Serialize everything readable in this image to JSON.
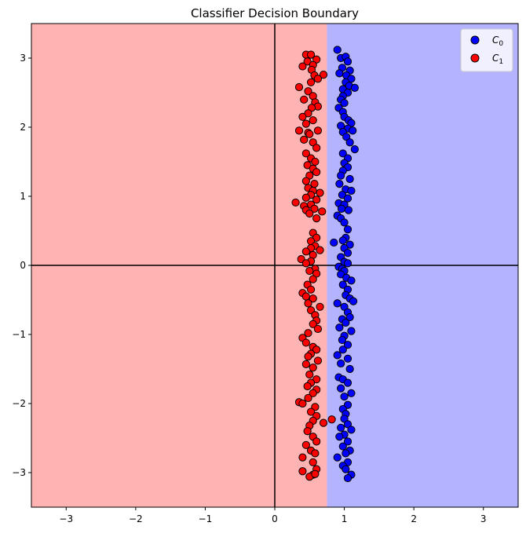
{
  "chart_data": {
    "type": "scatter",
    "title": "Classifier Decision Boundary",
    "xlabel": "",
    "ylabel": "",
    "xlim": [
      -3.5,
      3.5
    ],
    "ylim": [
      -3.5,
      3.5
    ],
    "xticks": [
      -3,
      -2,
      -1,
      0,
      1,
      2,
      3
    ],
    "yticks": [
      -3,
      -2,
      -1,
      0,
      1,
      2,
      3
    ],
    "grid": false,
    "reference_lines": [
      0,
      0
    ],
    "decision_boundary_x": 0.75,
    "regions": [
      {
        "side": "left",
        "label": "C1",
        "color": "#ffb3b3"
      },
      {
        "side": "right",
        "label": "C0",
        "color": "#b3b3ff"
      }
    ],
    "legend": {
      "placement": "top-right",
      "entries": [
        {
          "label": "C",
          "subscript": "0",
          "color": "#0000ff"
        },
        {
          "label": "C",
          "subscript": "1",
          "color": "#ff0000"
        }
      ]
    },
    "series": [
      {
        "name": "C0",
        "color": "#0000ff",
        "points": [
          [
            0.9,
            3.12
          ],
          [
            0.95,
            3.0
          ],
          [
            1.02,
            3.02
          ],
          [
            1.05,
            2.95
          ],
          [
            0.97,
            2.86
          ],
          [
            1.08,
            2.82
          ],
          [
            0.93,
            2.78
          ],
          [
            1.03,
            2.75
          ],
          [
            1.1,
            2.7
          ],
          [
            1.02,
            2.65
          ],
          [
            1.07,
            2.6
          ],
          [
            1.15,
            2.57
          ],
          [
            0.98,
            2.55
          ],
          [
            1.05,
            2.5
          ],
          [
            0.98,
            2.45
          ],
          [
            0.95,
            2.4
          ],
          [
            1.0,
            2.35
          ],
          [
            0.92,
            2.28
          ],
          [
            0.98,
            2.22
          ],
          [
            1.0,
            2.15
          ],
          [
            1.06,
            2.1
          ],
          [
            1.1,
            2.06
          ],
          [
            0.95,
            2.02
          ],
          [
            1.05,
            1.98
          ],
          [
            1.12,
            1.95
          ],
          [
            0.98,
            1.93
          ],
          [
            1.03,
            1.86
          ],
          [
            1.08,
            1.78
          ],
          [
            1.15,
            1.68
          ],
          [
            0.98,
            1.62
          ],
          [
            1.05,
            1.55
          ],
          [
            1.0,
            1.48
          ],
          [
            1.05,
            1.42
          ],
          [
            0.98,
            1.37
          ],
          [
            0.95,
            1.3
          ],
          [
            1.08,
            1.25
          ],
          [
            0.93,
            1.18
          ],
          [
            1.02,
            1.1
          ],
          [
            1.1,
            1.08
          ],
          [
            0.97,
            1.02
          ],
          [
            1.05,
            0.97
          ],
          [
            0.92,
            0.9
          ],
          [
            1.0,
            0.88
          ],
          [
            0.96,
            0.82
          ],
          [
            1.06,
            0.8
          ],
          [
            0.9,
            0.72
          ],
          [
            0.95,
            0.68
          ],
          [
            1.0,
            0.62
          ],
          [
            1.05,
            0.52
          ],
          [
            1.02,
            0.4
          ],
          [
            0.98,
            0.36
          ],
          [
            0.85,
            0.33
          ],
          [
            1.08,
            0.3
          ],
          [
            1.0,
            0.25
          ],
          [
            1.05,
            0.18
          ],
          [
            0.95,
            0.12
          ],
          [
            1.0,
            0.05
          ],
          [
            1.05,
            0.03
          ],
          [
            0.92,
            -0.02
          ],
          [
            0.97,
            -0.05
          ],
          [
            1.0,
            -0.08
          ],
          [
            0.95,
            -0.13
          ],
          [
            1.03,
            -0.18
          ],
          [
            1.1,
            -0.22
          ],
          [
            0.98,
            -0.28
          ],
          [
            1.05,
            -0.35
          ],
          [
            1.02,
            -0.43
          ],
          [
            1.08,
            -0.48
          ],
          [
            1.13,
            -0.52
          ],
          [
            0.9,
            -0.55
          ],
          [
            1.0,
            -0.6
          ],
          [
            1.05,
            -0.68
          ],
          [
            1.08,
            -0.75
          ],
          [
            0.97,
            -0.78
          ],
          [
            1.02,
            -0.83
          ],
          [
            0.93,
            -0.9
          ],
          [
            1.1,
            -0.95
          ],
          [
            1.0,
            -1.02
          ],
          [
            0.97,
            -1.08
          ],
          [
            1.05,
            -1.15
          ],
          [
            0.98,
            -1.22
          ],
          [
            0.9,
            -1.3
          ],
          [
            1.05,
            -1.35
          ],
          [
            0.95,
            -1.42
          ],
          [
            1.08,
            -1.5
          ],
          [
            0.92,
            -1.62
          ],
          [
            0.98,
            -1.65
          ],
          [
            1.05,
            -1.7
          ],
          [
            0.95,
            -1.78
          ],
          [
            1.1,
            -1.85
          ],
          [
            1.0,
            -1.9
          ],
          [
            1.05,
            -2.02
          ],
          [
            0.98,
            -2.08
          ],
          [
            1.02,
            -2.15
          ],
          [
            1.0,
            -2.22
          ],
          [
            1.05,
            -2.3
          ],
          [
            0.95,
            -2.35
          ],
          [
            1.1,
            -2.38
          ],
          [
            1.0,
            -2.45
          ],
          [
            0.93,
            -2.48
          ],
          [
            1.05,
            -2.55
          ],
          [
            0.98,
            -2.62
          ],
          [
            1.08,
            -2.68
          ],
          [
            1.02,
            -2.72
          ],
          [
            0.9,
            -2.78
          ],
          [
            1.05,
            -2.85
          ],
          [
            0.98,
            -2.9
          ],
          [
            1.02,
            -2.95
          ],
          [
            1.1,
            -3.03
          ],
          [
            1.05,
            -3.08
          ]
        ]
      },
      {
        "name": "C1",
        "color": "#ff0000",
        "points": [
          [
            0.45,
            3.05
          ],
          [
            0.52,
            3.05
          ],
          [
            0.6,
            2.98
          ],
          [
            0.47,
            2.95
          ],
          [
            0.55,
            2.9
          ],
          [
            0.4,
            2.88
          ],
          [
            0.53,
            2.83
          ],
          [
            0.7,
            2.76
          ],
          [
            0.57,
            2.75
          ],
          [
            0.62,
            2.7
          ],
          [
            0.52,
            2.65
          ],
          [
            0.35,
            2.58
          ],
          [
            0.48,
            2.52
          ],
          [
            0.55,
            2.45
          ],
          [
            0.42,
            2.4
          ],
          [
            0.58,
            2.36
          ],
          [
            0.62,
            2.3
          ],
          [
            0.53,
            2.28
          ],
          [
            0.48,
            2.2
          ],
          [
            0.4,
            2.15
          ],
          [
            0.55,
            2.1
          ],
          [
            0.45,
            2.05
          ],
          [
            0.35,
            1.95
          ],
          [
            0.48,
            1.92
          ],
          [
            0.62,
            1.95
          ],
          [
            0.5,
            1.9
          ],
          [
            0.42,
            1.82
          ],
          [
            0.55,
            1.78
          ],
          [
            0.6,
            1.7
          ],
          [
            0.45,
            1.62
          ],
          [
            0.52,
            1.55
          ],
          [
            0.58,
            1.5
          ],
          [
            0.47,
            1.45
          ],
          [
            0.55,
            1.4
          ],
          [
            0.6,
            1.35
          ],
          [
            0.5,
            1.3
          ],
          [
            0.45,
            1.22
          ],
          [
            0.57,
            1.18
          ],
          [
            0.48,
            1.12
          ],
          [
            0.55,
            1.08
          ],
          [
            0.65,
            1.05
          ],
          [
            0.52,
            1.02
          ],
          [
            0.45,
            0.98
          ],
          [
            0.6,
            0.95
          ],
          [
            0.3,
            0.91
          ],
          [
            0.52,
            0.88
          ],
          [
            0.42,
            0.86
          ],
          [
            0.57,
            0.82
          ],
          [
            0.45,
            0.8
          ],
          [
            0.68,
            0.78
          ],
          [
            0.5,
            0.75
          ],
          [
            0.6,
            0.68
          ],
          [
            0.55,
            0.47
          ],
          [
            0.6,
            0.4
          ],
          [
            0.52,
            0.35
          ],
          [
            0.58,
            0.28
          ],
          [
            0.52,
            0.25
          ],
          [
            0.65,
            0.22
          ],
          [
            0.45,
            0.2
          ],
          [
            0.55,
            0.15
          ],
          [
            0.38,
            0.09
          ],
          [
            0.52,
            0.06
          ],
          [
            0.45,
            0.03
          ],
          [
            0.58,
            -0.05
          ],
          [
            0.5,
            -0.08
          ],
          [
            0.6,
            -0.12
          ],
          [
            0.55,
            -0.2
          ],
          [
            0.47,
            -0.28
          ],
          [
            0.52,
            -0.35
          ],
          [
            0.4,
            -0.4
          ],
          [
            0.45,
            -0.45
          ],
          [
            0.55,
            -0.48
          ],
          [
            0.48,
            -0.55
          ],
          [
            0.65,
            -0.6
          ],
          [
            0.52,
            -0.65
          ],
          [
            0.58,
            -0.72
          ],
          [
            0.6,
            -0.8
          ],
          [
            0.55,
            -0.85
          ],
          [
            0.62,
            -0.92
          ],
          [
            0.48,
            -0.98
          ],
          [
            0.4,
            -1.05
          ],
          [
            0.45,
            -1.12
          ],
          [
            0.55,
            -1.18
          ],
          [
            0.6,
            -1.22
          ],
          [
            0.52,
            -1.28
          ],
          [
            0.48,
            -1.32
          ],
          [
            0.62,
            -1.38
          ],
          [
            0.45,
            -1.43
          ],
          [
            0.55,
            -1.48
          ],
          [
            0.5,
            -1.58
          ],
          [
            0.6,
            -1.65
          ],
          [
            0.52,
            -1.7
          ],
          [
            0.47,
            -1.75
          ],
          [
            0.6,
            -1.8
          ],
          [
            0.55,
            -1.85
          ],
          [
            0.48,
            -1.92
          ],
          [
            0.35,
            -1.98
          ],
          [
            0.4,
            -2.0
          ],
          [
            0.58,
            -2.05
          ],
          [
            0.52,
            -2.12
          ],
          [
            0.6,
            -2.18
          ],
          [
            0.55,
            -2.25
          ],
          [
            0.7,
            -2.28
          ],
          [
            0.82,
            -2.23
          ],
          [
            0.5,
            -2.32
          ],
          [
            0.47,
            -2.4
          ],
          [
            0.55,
            -2.48
          ],
          [
            0.6,
            -2.55
          ],
          [
            0.45,
            -2.6
          ],
          [
            0.52,
            -2.68
          ],
          [
            0.58,
            -2.72
          ],
          [
            0.4,
            -2.78
          ],
          [
            0.55,
            -2.85
          ],
          [
            0.6,
            -2.95
          ],
          [
            0.4,
            -2.98
          ],
          [
            0.55,
            -3.03
          ],
          [
            0.5,
            -3.06
          ],
          [
            0.58,
            -3.02
          ]
        ]
      }
    ]
  }
}
